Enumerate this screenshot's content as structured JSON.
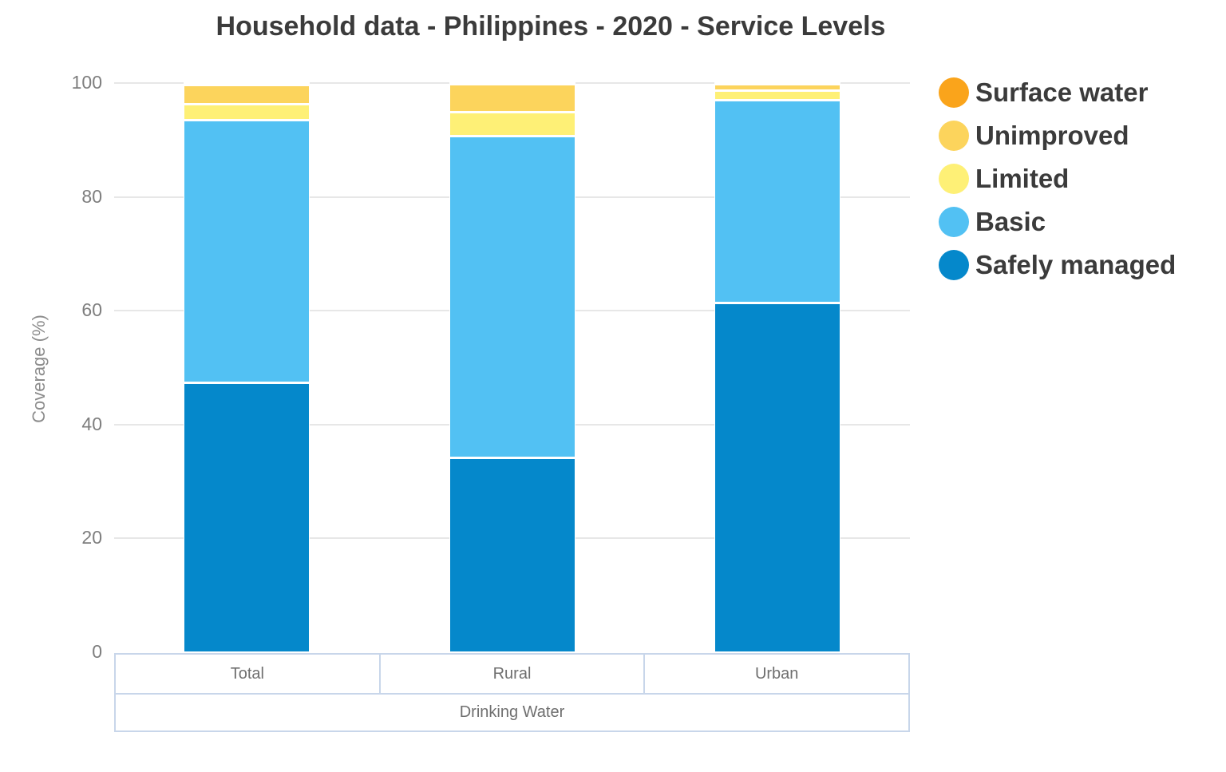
{
  "title": "Household data - Philippines - 2020 - Service Levels",
  "y_axis_title": "Coverage (%)",
  "footer": {
    "group_label": "Drinking Water"
  },
  "chart_data": {
    "type": "bar",
    "stacked": true,
    "title": "Household data - Philippines - 2020 - Service Levels",
    "xlabel": "Drinking Water",
    "ylabel": "Coverage (%)",
    "ylim": [
      0,
      100
    ],
    "yticks": [
      0,
      20,
      40,
      60,
      80,
      100
    ],
    "grid": true,
    "categories": [
      "Total",
      "Rural",
      "Urban"
    ],
    "series": [
      {
        "name": "Safely managed",
        "color": "#0588cb",
        "values": [
          47.4,
          34.2,
          61.4
        ]
      },
      {
        "name": "Basic",
        "color": "#52c1f3",
        "values": [
          46.2,
          56.6,
          35.6
        ]
      },
      {
        "name": "Limited",
        "color": "#fef076",
        "values": [
          2.8,
          4.1,
          1.7
        ]
      },
      {
        "name": "Unimproved",
        "color": "#fcd45c",
        "values": [
          3.3,
          4.9,
          1.2
        ]
      },
      {
        "name": "Surface water",
        "color": "#faa41b",
        "values": [
          0.3,
          0.2,
          0.1
        ]
      }
    ],
    "legend": {
      "position": "right",
      "order_top_to_bottom": [
        "Surface water",
        "Unimproved",
        "Limited",
        "Basic",
        "Safely managed"
      ]
    }
  },
  "colors": {
    "title_text": "#3b3b3b",
    "tick_text": "#7e7e7e",
    "footer_text": "#6f6f6f",
    "gridline": "#e7e7e7",
    "table_border": "#c8d6ea",
    "background": "#ffffff"
  }
}
